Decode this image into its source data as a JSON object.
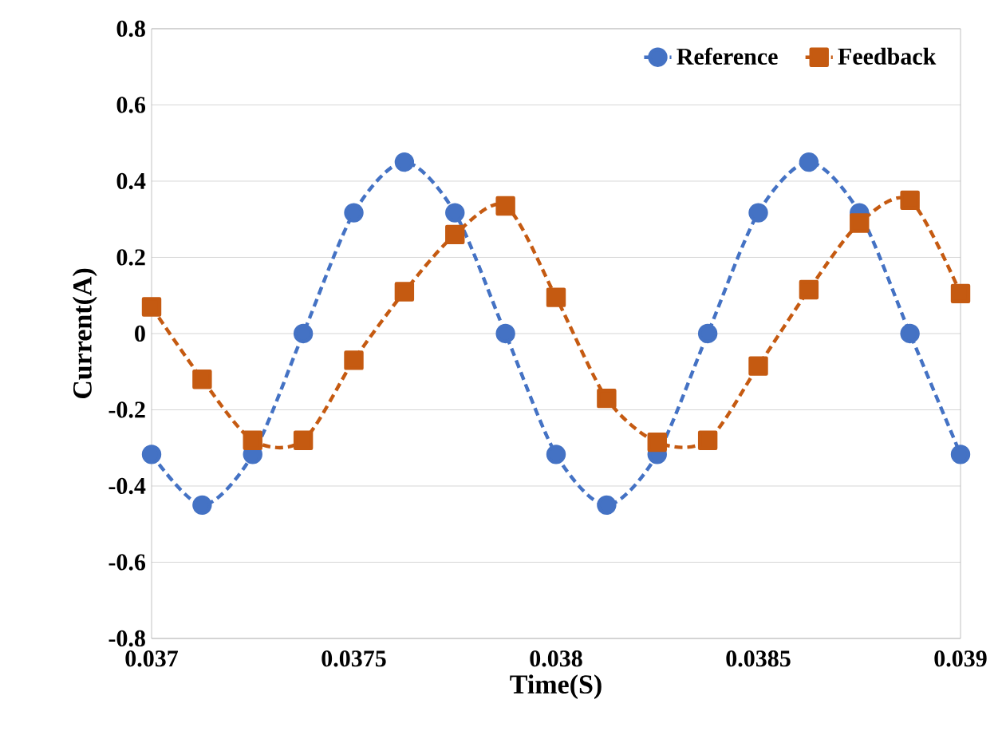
{
  "chart_data": {
    "type": "line",
    "xlabel": "Time(S)",
    "ylabel": "Current(A)",
    "x": [
      0.037,
      0.037125,
      0.03725,
      0.037375,
      0.0375,
      0.037625,
      0.03775,
      0.037875,
      0.038,
      0.038125,
      0.03825,
      0.038375,
      0.0385,
      0.038625,
      0.03875,
      0.038875,
      0.039
    ],
    "series": [
      {
        "name": "Reference",
        "color": "#4472c4",
        "marker": "circle",
        "values": [
          -0.317,
          -0.45,
          -0.317,
          0,
          0.317,
          0.45,
          0.317,
          0,
          -0.317,
          -0.45,
          -0.317,
          0,
          0.317,
          0.45,
          0.317,
          0,
          -0.317
        ]
      },
      {
        "name": "Feedback",
        "color": "#c55a11",
        "marker": "square",
        "values": [
          0.07,
          -0.12,
          -0.28,
          -0.28,
          -0.07,
          0.11,
          0.26,
          0.335,
          0.095,
          -0.17,
          -0.285,
          -0.28,
          -0.085,
          0.115,
          0.29,
          0.35,
          0.105
        ]
      }
    ],
    "xlim": [
      0.037,
      0.039
    ],
    "xticks": [
      0.037,
      0.0375,
      0.038,
      0.0385,
      0.039
    ],
    "ylim": [
      -0.8,
      0.8
    ],
    "yticks": [
      -0.8,
      -0.6,
      -0.4,
      -0.2,
      0,
      0.2,
      0.4,
      0.6,
      0.8
    ],
    "grid": "y",
    "legend": "top right",
    "line_style": "dashed"
  }
}
